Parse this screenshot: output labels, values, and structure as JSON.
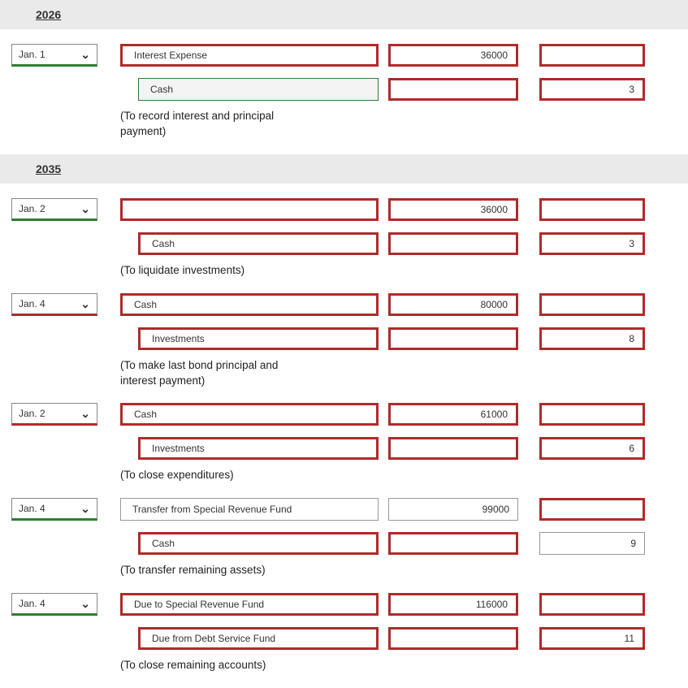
{
  "years": {
    "y2026": "2026",
    "y2035": "2035"
  },
  "entries": [
    {
      "date": "Jan. 1",
      "date_state": "green",
      "lines": [
        {
          "account": "Interest Expense",
          "acct_state": "red",
          "debit": "36000",
          "debit_state": "red",
          "credit": "",
          "credit_state": "red",
          "indent": false
        },
        {
          "account": "Cash",
          "acct_state": "green",
          "debit": "",
          "debit_state": "red",
          "credit": "3",
          "credit_state": "red",
          "indent": true
        }
      ],
      "note": "(To record interest and principal payment)"
    },
    {
      "date": "Jan. 2",
      "date_state": "green",
      "lines": [
        {
          "account": "",
          "acct_state": "red",
          "debit": "36000",
          "debit_state": "red",
          "credit": "",
          "credit_state": "red",
          "indent": false
        },
        {
          "account": "Cash",
          "acct_state": "red",
          "debit": "",
          "debit_state": "red",
          "credit": "3",
          "credit_state": "red",
          "indent": true
        }
      ],
      "note": "(To liquidate investments)"
    },
    {
      "date": "Jan. 4",
      "date_state": "red",
      "lines": [
        {
          "account": "Cash",
          "acct_state": "red",
          "debit": "80000",
          "debit_state": "red",
          "credit": "",
          "credit_state": "red",
          "indent": false
        },
        {
          "account": "Investments",
          "acct_state": "red",
          "debit": "",
          "debit_state": "red",
          "credit": "8",
          "credit_state": "red",
          "indent": true
        }
      ],
      "note": "(To make last bond principal and interest payment)"
    },
    {
      "date": "Jan. 2",
      "date_state": "red",
      "lines": [
        {
          "account": "Cash",
          "acct_state": "red",
          "debit": "61000",
          "debit_state": "red",
          "credit": "",
          "credit_state": "red",
          "indent": false
        },
        {
          "account": "Investments",
          "acct_state": "red",
          "debit": "",
          "debit_state": "red",
          "credit": "6",
          "credit_state": "red",
          "indent": true
        }
      ],
      "note": "(To close expenditures)"
    },
    {
      "date": "Jan. 4",
      "date_state": "green",
      "lines": [
        {
          "account": "Transfer from Special Revenue Fund",
          "acct_state": "plain",
          "debit": "99000",
          "debit_state": "plain",
          "credit": "",
          "credit_state": "red",
          "indent": false
        },
        {
          "account": "Cash",
          "acct_state": "red",
          "debit": "",
          "debit_state": "red",
          "credit": "9",
          "credit_state": "plain",
          "indent": true
        }
      ],
      "note": "(To transfer remaining assets)"
    },
    {
      "date": "Jan. 4",
      "date_state": "green",
      "lines": [
        {
          "account": "Due to Special Revenue Fund",
          "acct_state": "red",
          "debit": "116000",
          "debit_state": "red",
          "credit": "",
          "credit_state": "red",
          "indent": false
        },
        {
          "account": "Due from Debt Service Fund",
          "acct_state": "red",
          "debit": "",
          "debit_state": "red",
          "credit": "11",
          "credit_state": "red",
          "indent": true
        }
      ],
      "note": "(To close remaining accounts)"
    }
  ]
}
